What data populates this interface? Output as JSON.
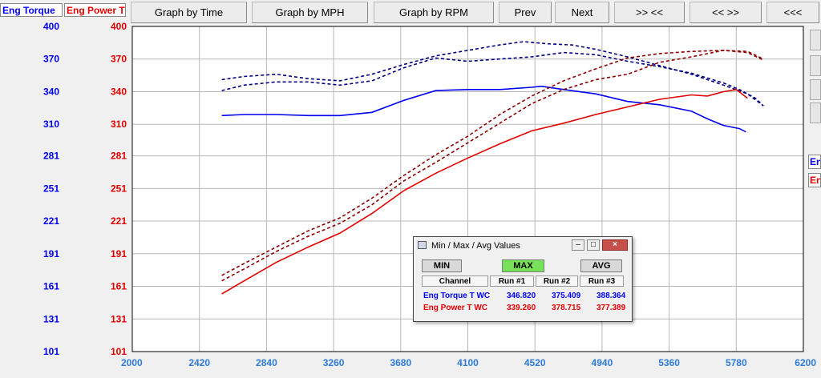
{
  "header": {
    "torque_label": "Eng Torque",
    "power_label": "Eng Power T",
    "buttons": [
      "Graph by Time",
      "Graph by MPH",
      "Graph by RPM",
      "Prev",
      "Next",
      ">> <<",
      "<< >>",
      "<<<"
    ]
  },
  "side": {
    "labels": [
      "En",
      "En"
    ]
  },
  "chart_data": {
    "type": "line",
    "x_ticks": [
      2000,
      2420,
      2840,
      3260,
      3680,
      4100,
      4520,
      4940,
      5360,
      5780,
      6200
    ],
    "xlim": [
      2000,
      6200
    ],
    "y_left_ticks": [
      400,
      370,
      340,
      310,
      281,
      251,
      221,
      191,
      161,
      131,
      101
    ],
    "y_right_ticks": [
      400,
      370,
      340,
      310,
      281,
      251,
      221,
      191,
      161,
      131,
      101
    ],
    "ylim": [
      101,
      400
    ],
    "grid": true,
    "colors": {
      "torque": "#0000ee",
      "power": "#e00000",
      "power_dashed": "#8b0000",
      "torque_dashed": "#000080"
    },
    "series": [
      {
        "kind": "torque",
        "style": "solid",
        "x": [
          2560,
          2700,
          2900,
          3100,
          3300,
          3500,
          3700,
          3900,
          4100,
          4300,
          4500,
          4560,
          4700,
          4900,
          5100,
          5300,
          5500,
          5600,
          5700,
          5800,
          5840
        ],
        "y": [
          318,
          319,
          319,
          318,
          318,
          321,
          332,
          341,
          342,
          342,
          344,
          345,
          342,
          338,
          331,
          328,
          322,
          315,
          309,
          306,
          303
        ]
      },
      {
        "kind": "torque",
        "style": "dashed",
        "x": [
          2560,
          2700,
          2900,
          3100,
          3300,
          3500,
          3700,
          3900,
          4100,
          4300,
          4500,
          4700,
          4900,
          5100,
          5300,
          5500,
          5700,
          5800,
          5900,
          5950
        ],
        "y": [
          341,
          346,
          349,
          349,
          346,
          350,
          362,
          371,
          368,
          370,
          372,
          376,
          374,
          368,
          363,
          357,
          348,
          342,
          334,
          327
        ]
      },
      {
        "kind": "torque",
        "style": "dashed",
        "x": [
          2560,
          2700,
          2900,
          3100,
          3300,
          3500,
          3700,
          3900,
          4100,
          4300,
          4450,
          4600,
          4750,
          4900,
          5100,
          5300,
          5500,
          5700,
          5850,
          5950
        ],
        "y": [
          351,
          354,
          356,
          352,
          350,
          356,
          365,
          373,
          378,
          383,
          386,
          384,
          383,
          379,
          372,
          364,
          356,
          346,
          338,
          327
        ]
      },
      {
        "kind": "power",
        "style": "solid",
        "x": [
          2560,
          2700,
          2900,
          3100,
          3300,
          3500,
          3700,
          3900,
          4100,
          4300,
          4500,
          4700,
          4900,
          5100,
          5300,
          5500,
          5600,
          5700,
          5780,
          5850
        ],
        "y": [
          154,
          166,
          183,
          197,
          210,
          228,
          249,
          265,
          279,
          292,
          304,
          311,
          319,
          326,
          333,
          337,
          336,
          340,
          342,
          334
        ]
      },
      {
        "kind": "power",
        "style": "dashed",
        "x": [
          2560,
          2700,
          2900,
          3100,
          3300,
          3500,
          3700,
          3900,
          4100,
          4300,
          4500,
          4700,
          4900,
          5100,
          5300,
          5500,
          5700,
          5850,
          5950
        ],
        "y": [
          166,
          177,
          193,
          207,
          219,
          236,
          258,
          275,
          293,
          311,
          329,
          342,
          351,
          356,
          367,
          372,
          378,
          376,
          369
        ]
      },
      {
        "kind": "power",
        "style": "dashed",
        "x": [
          2560,
          2700,
          2900,
          3100,
          3300,
          3500,
          3700,
          3900,
          4100,
          4300,
          4500,
          4700,
          4900,
          5100,
          5300,
          5500,
          5700,
          5850,
          5950
        ],
        "y": [
          171,
          182,
          197,
          212,
          224,
          242,
          263,
          282,
          299,
          319,
          336,
          350,
          361,
          371,
          375,
          377,
          378,
          377,
          370
        ]
      }
    ]
  },
  "dialog": {
    "title": "Min / Max / Avg Values",
    "min_label": "MIN",
    "max_label": "MAX",
    "avg_label": "AVG",
    "columns": [
      "Channel",
      "Run #1",
      "Run #2",
      "Run #3"
    ],
    "rows": [
      {
        "channel": "Eng Torque T WC",
        "values": [
          "346.820",
          "375.409",
          "388.364"
        ]
      },
      {
        "channel": "Eng Power T WC",
        "values": [
          "339.260",
          "378.715",
          "377.389"
        ]
      }
    ],
    "colors": {
      "max_active": "#79e05a",
      "torque_row": "#0000ee",
      "power_row": "#e00000"
    }
  }
}
